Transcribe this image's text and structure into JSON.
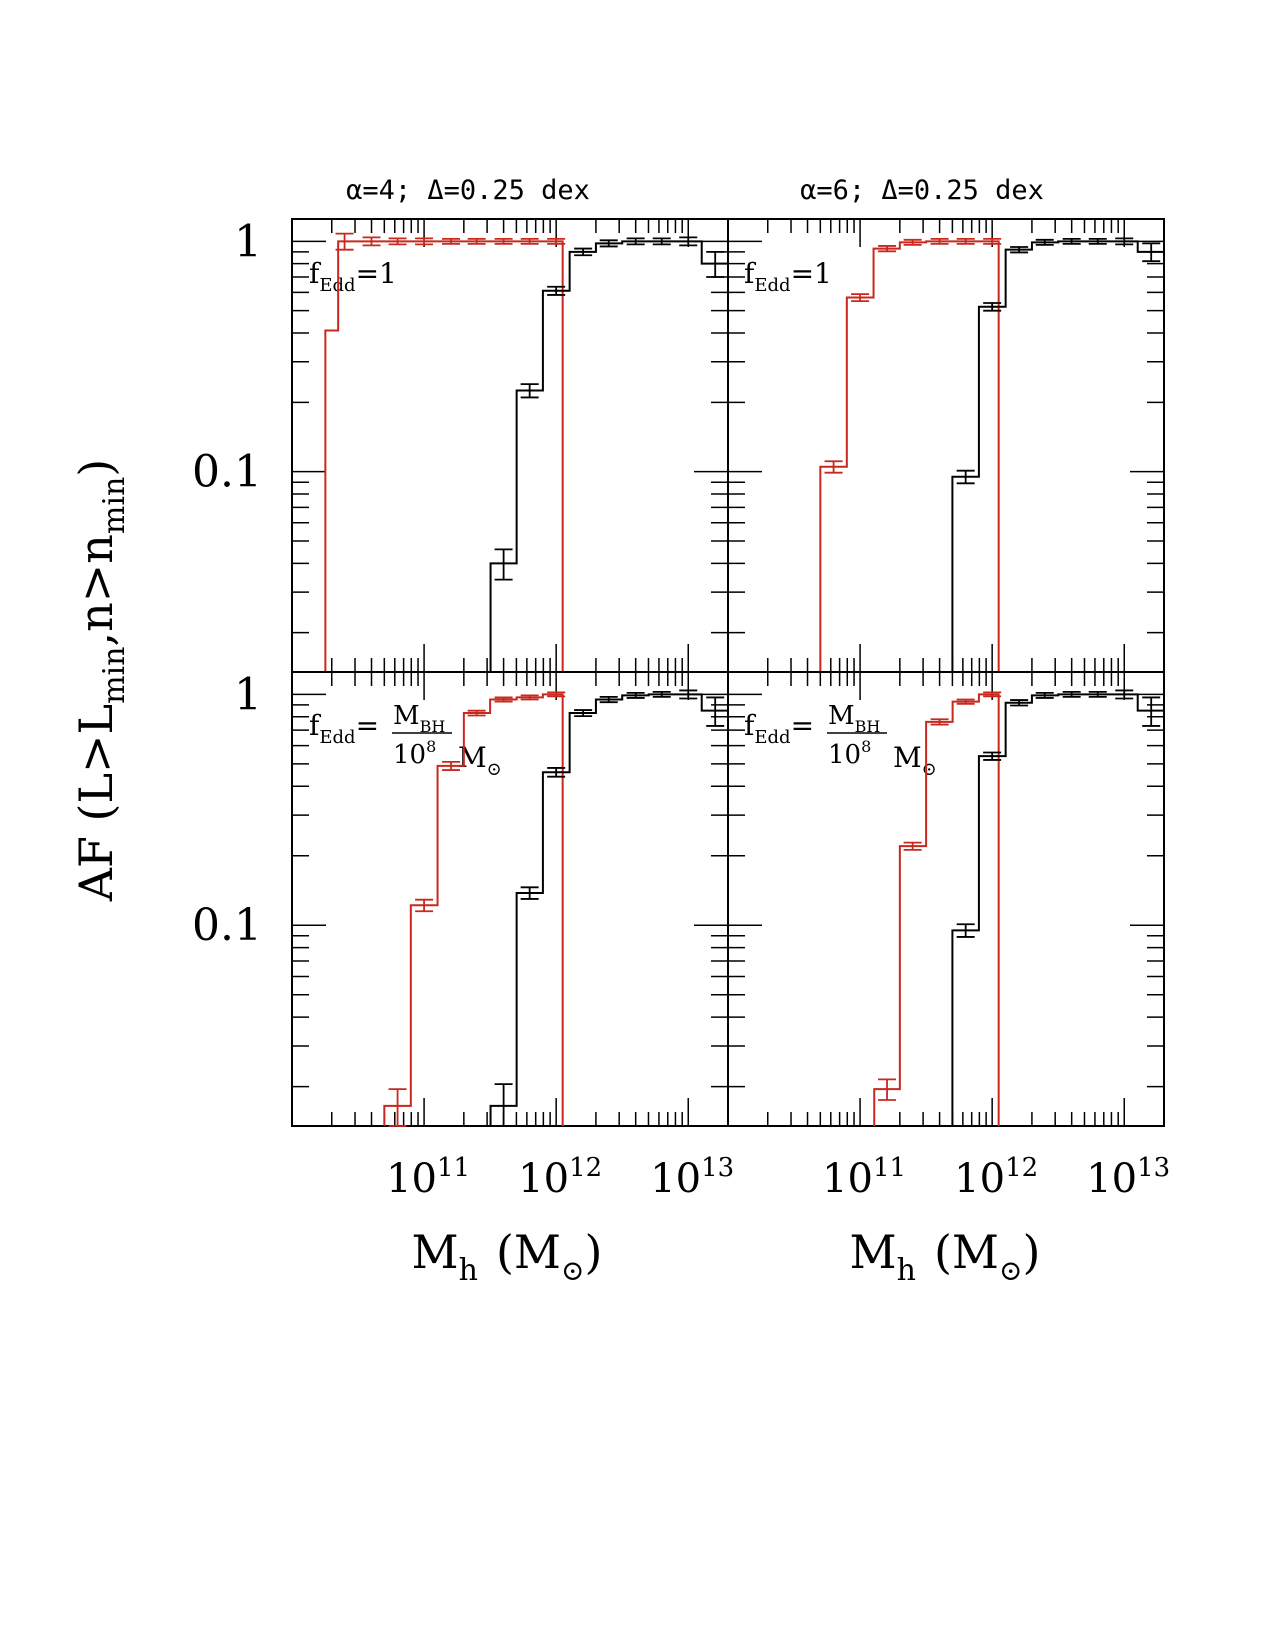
{
  "chart_data": {
    "type": "line",
    "shared_ylabel": {
      "main": "AF (L>L",
      "sub1": "min",
      "mid": ",n>n",
      "sub2": "min",
      "end": ")"
    },
    "xlabel": {
      "main": "M",
      "sub": "h",
      "unit": "(M",
      "sun": "⊙",
      "close": ")"
    },
    "x_scale": "log",
    "y_scale": "log",
    "xlim": [
      10000000000,
      20000000000000
    ],
    "ylim": [
      0.0135,
      1.25
    ],
    "x_ticklabels": [
      {
        "value": 100000000000,
        "base": "10",
        "exp": "11"
      },
      {
        "value": 1000000000000,
        "base": "10",
        "exp": "12"
      },
      {
        "value": 10000000000000,
        "base": "10",
        "exp": "13"
      }
    ],
    "y_ticklabels": [
      {
        "value": 1,
        "label": "1"
      },
      {
        "value": 0.1,
        "label": "0.1"
      }
    ],
    "column_titles": [
      "α=4; Δ=0.25 dex",
      "α=6; Δ=0.25 dex"
    ],
    "panels": [
      {
        "name": "alpha4-fedd1",
        "annotation": {
          "f": "f",
          "sub": "Edd",
          "rest": "=1"
        },
        "series": [
          {
            "name": "red",
            "color": "#c8281e",
            "x": [
              20000000000,
              25000000000,
              40000000000,
              63000000000,
              100000000000,
              160000000000,
              250000000000,
              400000000000,
              630000000000,
              1000000000000
            ],
            "y": [
              0.41,
              1.0,
              1.0,
              1.0,
              1.0,
              1.0,
              1.0,
              1.0,
              1.0,
              1.0
            ],
            "err": [
              0.0,
              0.08,
              0.04,
              0.03,
              0.03,
              0.025,
              0.025,
              0.025,
              0.025,
              0.025
            ],
            "drop_at": 1120000000000
          },
          {
            "name": "black",
            "color": "#000000",
            "x": [
              400000000000,
              630000000000,
              1000000000000,
              1600000000000,
              2500000000000,
              4000000000000,
              6300000000000,
              10000000000000,
              16000000000000
            ],
            "y": [
              0.04,
              0.225,
              0.61,
              0.9,
              0.98,
              1.0,
              1.0,
              1.0,
              0.8
            ],
            "err": [
              0.006,
              0.015,
              0.025,
              0.03,
              0.03,
              0.03,
              0.03,
              0.04,
              0.1
            ]
          }
        ]
      },
      {
        "name": "alpha6-fedd1",
        "annotation": {
          "f": "f",
          "sub": "Edd",
          "rest": "=1"
        },
        "series": [
          {
            "name": "red",
            "color": "#c8281e",
            "x": [
              63000000000,
              100000000000,
              160000000000,
              250000000000,
              400000000000,
              630000000000,
              1000000000000
            ],
            "y": [
              0.105,
              0.57,
              0.93,
              0.99,
              1.0,
              1.0,
              1.0
            ],
            "err": [
              0.006,
              0.02,
              0.025,
              0.025,
              0.025,
              0.025,
              0.025
            ],
            "drop_at": 1120000000000
          },
          {
            "name": "black",
            "color": "#000000",
            "x": [
              630000000000,
              1000000000000,
              1600000000000,
              2500000000000,
              4000000000000,
              6300000000000,
              10000000000000,
              16000000000000
            ],
            "y": [
              0.095,
              0.52,
              0.92,
              0.99,
              1.0,
              1.0,
              1.0,
              0.9
            ],
            "err": [
              0.006,
              0.02,
              0.025,
              0.025,
              0.025,
              0.025,
              0.03,
              0.08
            ]
          }
        ]
      },
      {
        "name": "alpha4-fedd-mbh",
        "annotation": {
          "f": "f",
          "sub": "Edd",
          "rest": "=",
          "num": "M",
          "num_sub": "BH",
          "den": "10",
          "den_sup": "8",
          "tail": "M",
          "sun": "⊙"
        },
        "series": [
          {
            "name": "red",
            "color": "#c8281e",
            "x": [
              63000000000,
              100000000000,
              160000000000,
              250000000000,
              400000000000,
              630000000000,
              1000000000000
            ],
            "y": [
              0.0165,
              0.122,
              0.49,
              0.83,
              0.95,
              0.97,
              1.0
            ],
            "err": [
              0.003,
              0.007,
              0.02,
              0.02,
              0.02,
              0.02,
              0.02
            ],
            "drop_at": 1120000000000
          },
          {
            "name": "black",
            "color": "#000000",
            "x": [
              400000000000,
              630000000000,
              1000000000000,
              1600000000000,
              2500000000000,
              4000000000000,
              6300000000000,
              10000000000000,
              16000000000000
            ],
            "y": [
              0.0165,
              0.138,
              0.46,
              0.83,
              0.95,
              0.99,
              1.0,
              1.0,
              0.85
            ],
            "err": [
              0.004,
              0.008,
              0.02,
              0.025,
              0.025,
              0.025,
              0.025,
              0.04,
              0.12
            ]
          }
        ]
      },
      {
        "name": "alpha6-fedd-mbh",
        "annotation": {
          "f": "f",
          "sub": "Edd",
          "rest": "=",
          "num": "M",
          "num_sub": "BH",
          "den": "10",
          "den_sup": "8",
          "tail": "M",
          "sun": "⊙"
        },
        "series": [
          {
            "name": "red",
            "color": "#c8281e",
            "x": [
              160000000000,
              250000000000,
              400000000000,
              630000000000,
              1000000000000
            ],
            "y": [
              0.0195,
              0.22,
              0.76,
              0.93,
              1.0
            ],
            "err": [
              0.002,
              0.008,
              0.02,
              0.02,
              0.02
            ],
            "drop_at": 1120000000000
          },
          {
            "name": "black",
            "color": "#000000",
            "x": [
              630000000000,
              1000000000000,
              1600000000000,
              2500000000000,
              4000000000000,
              6300000000000,
              10000000000000,
              16000000000000
            ],
            "y": [
              0.095,
              0.54,
              0.92,
              0.99,
              1.0,
              1.0,
              1.0,
              0.85
            ],
            "err": [
              0.006,
              0.02,
              0.025,
              0.025,
              0.025,
              0.025,
              0.04,
              0.12
            ]
          }
        ]
      }
    ]
  }
}
